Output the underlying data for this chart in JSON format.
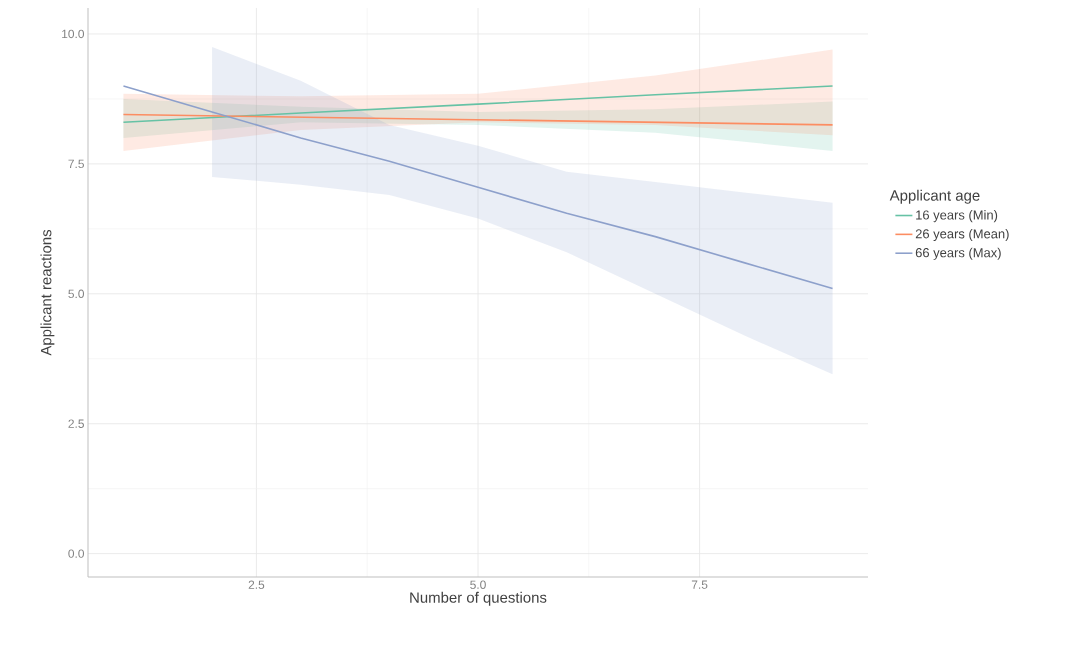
{
  "chart_data": {
    "type": "line",
    "xlabel": "Number of questions",
    "ylabel": "Applicant reactions",
    "legend_title": "Applicant age",
    "legend": "right",
    "grid": true,
    "xlim": [
      0.6,
      9.4
    ],
    "ylim": [
      -0.45,
      10.5
    ],
    "xticks": [
      {
        "value": 2.5,
        "label": "2.5"
      },
      {
        "value": 5,
        "label": "5.0"
      },
      {
        "value": 7.5,
        "label": "7.5"
      }
    ],
    "yticks": [
      {
        "value": 0,
        "label": "0.0"
      },
      {
        "value": 2.5,
        "label": "2.5"
      },
      {
        "value": 5,
        "label": "5.0"
      },
      {
        "value": 7.5,
        "label": "7.5"
      },
      {
        "value": 10,
        "label": "10.0"
      }
    ],
    "series": [
      {
        "name": "16 years (Min)",
        "color": "#66c2a5",
        "x": [
          1,
          3,
          5,
          7,
          9
        ],
        "values": [
          8.3,
          8.48,
          8.65,
          8.83,
          9.0
        ],
        "lower": [
          8.0,
          8.3,
          8.25,
          8.1,
          7.75
        ],
        "upper": [
          8.75,
          8.6,
          8.5,
          8.55,
          8.7
        ]
      },
      {
        "name": "26 years (Mean)",
        "color": "#fc8d62",
        "x": [
          1,
          3,
          5,
          7,
          9
        ],
        "values": [
          8.45,
          8.4,
          8.35,
          8.3,
          8.25
        ],
        "lower": [
          7.75,
          8.15,
          8.3,
          8.25,
          8.05
        ],
        "upper": [
          8.85,
          8.8,
          8.85,
          9.2,
          9.7
        ]
      },
      {
        "name": "66 years (Max)",
        "color": "#8da0cb",
        "x": [
          1,
          2,
          3,
          4,
          5,
          6,
          7,
          8,
          9
        ],
        "values": [
          9.0,
          8.5,
          8.0,
          7.55,
          7.05,
          6.55,
          6.1,
          5.6,
          5.1
        ],
        "lower": [
          null,
          7.25,
          7.1,
          6.9,
          6.45,
          5.8,
          5.0,
          4.2,
          3.45
        ],
        "upper": [
          null,
          9.75,
          9.1,
          8.25,
          7.85,
          7.35,
          7.15,
          6.95,
          6.75
        ]
      }
    ]
  }
}
